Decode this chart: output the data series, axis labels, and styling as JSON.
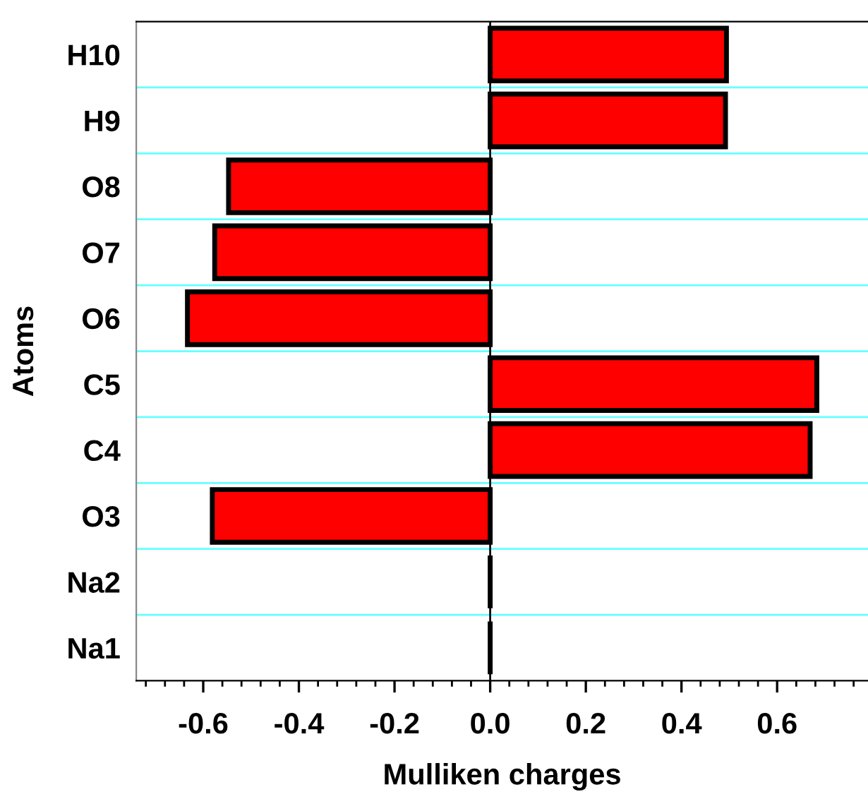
{
  "chart_data": {
    "type": "bar",
    "orientation": "horizontal",
    "xlabel": "Mulliken charges",
    "ylabel": "Atoms",
    "categories": [
      "H10",
      "H9",
      "O8",
      "O7",
      "O6",
      "C5",
      "C4",
      "O3",
      "Na2",
      "Na1"
    ],
    "values": [
      0.494,
      0.492,
      -0.547,
      -0.576,
      -0.633,
      0.683,
      0.669,
      -0.581,
      0,
      0
    ],
    "colors": [
      "#ff0000",
      "#ff0000",
      "#ff0000",
      "#ff0000",
      "#ff0000",
      "#ff0000",
      "#ff0000",
      "#ff0000",
      "#000000",
      "#000000"
    ],
    "xlim": [
      -0.74,
      0.79
    ],
    "xticks": [
      {
        "value": -0.6,
        "label": "-0.6"
      },
      {
        "value": -0.4,
        "label": "-0.4"
      },
      {
        "value": -0.2,
        "label": "-0.2"
      },
      {
        "value": 0.0,
        "label": "0.0"
      },
      {
        "value": 0.2,
        "label": "0.2"
      },
      {
        "value": 0.4,
        "label": "0.4"
      },
      {
        "value": 0.6,
        "label": "0.6"
      }
    ],
    "grid": "y",
    "legend": false
  }
}
